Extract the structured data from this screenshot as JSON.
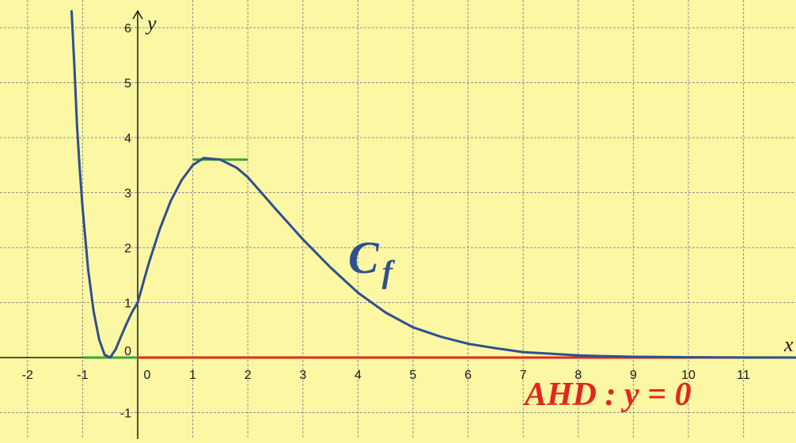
{
  "colors": {
    "background": "#fbf7a3",
    "grid": "#8f8f8f",
    "axis": "#1a1a1a",
    "curve": "#2f4f8f",
    "tangent": "#3ca33c",
    "asymptote": "#e3261f"
  },
  "chart_data": {
    "type": "line",
    "title": "",
    "xlabel": "x",
    "ylabel": "y",
    "xlim": [
      -2.5,
      12
    ],
    "ylim": [
      -1.5,
      6.3
    ],
    "grid": true,
    "x_ticks": [
      -2,
      -1,
      0,
      1,
      2,
      3,
      4,
      5,
      6,
      7,
      8,
      9,
      10,
      11
    ],
    "y_ticks": [
      -1,
      0,
      1,
      2,
      3,
      4,
      5,
      6
    ],
    "x_tick_labels": [
      "-2",
      "-1",
      "0",
      "1",
      "2",
      "3",
      "4",
      "5",
      "6",
      "7",
      "8",
      "9",
      "10",
      "11"
    ],
    "y_tick_labels": [
      "-1",
      "0",
      "1",
      "2",
      "3",
      "4",
      "5",
      "6"
    ],
    "series": [
      {
        "name": "C_f",
        "x": [
          -1.2,
          -1.15,
          -1.1,
          -1.05,
          -1.0,
          -0.9,
          -0.8,
          -0.7,
          -0.6,
          -0.5,
          -0.4,
          -0.3,
          -0.2,
          -0.1,
          0.0,
          0.2,
          0.4,
          0.6,
          0.8,
          1.0,
          1.2,
          1.5,
          1.8,
          2.0,
          2.5,
          3.0,
          3.5,
          4.0,
          4.5,
          5.0,
          5.5,
          6.0,
          6.5,
          7.0,
          7.5,
          8.0,
          8.5,
          9.0,
          9.5,
          10.0,
          10.5,
          11.0,
          11.5,
          12.0
        ],
        "y": [
          6.3,
          5.3,
          4.2,
          3.4,
          2.72,
          1.6,
          0.84,
          0.33,
          0.05,
          0.0,
          0.15,
          0.39,
          0.62,
          0.83,
          1.0,
          1.71,
          2.33,
          2.85,
          3.23,
          3.5,
          3.63,
          3.6,
          3.45,
          3.28,
          2.71,
          2.15,
          1.64,
          1.18,
          0.82,
          0.55,
          0.38,
          0.25,
          0.17,
          0.1,
          0.07,
          0.04,
          0.025,
          0.015,
          0.01,
          0.006,
          0.004,
          0.002,
          0.001,
          0.0
        ]
      }
    ],
    "tangents": [
      {
        "y": 0,
        "x_from": -1.0,
        "x_to": 0.0
      },
      {
        "y": 3.6,
        "x_from": 1.0,
        "x_to": 2.0
      }
    ],
    "asymptote": {
      "y": 0
    },
    "curve_label": {
      "base": "C",
      "sub": "f"
    },
    "asymptote_label": "AHD : y = 0"
  }
}
